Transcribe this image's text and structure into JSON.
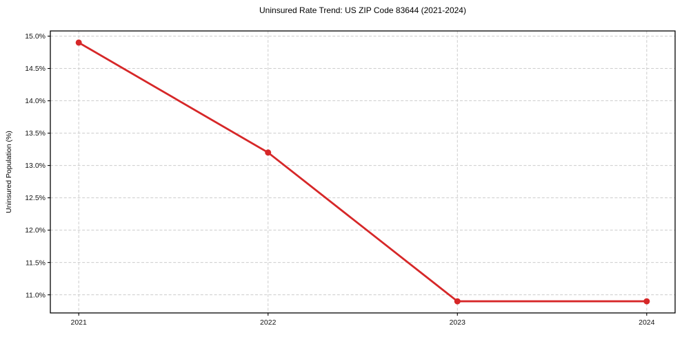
{
  "chart_data": {
    "type": "line",
    "title": "Uninsured Rate Trend: US ZIP Code 83644 (2021-2024)",
    "xlabel": "",
    "ylabel": "Uninsured Population (%)",
    "x": [
      2021,
      2022,
      2023,
      2024
    ],
    "x_tick_labels": [
      "2021",
      "2022",
      "2023",
      "2024"
    ],
    "series": [
      {
        "name": "Uninsured Population (%)",
        "values": [
          14.9,
          13.2,
          10.9,
          10.9
        ]
      }
    ],
    "yticks": [
      11.0,
      11.5,
      12.0,
      12.5,
      13.0,
      13.5,
      14.0,
      14.5,
      15.0
    ],
    "ytick_suffix": "%",
    "xlim": [
      2020.85,
      2024.15
    ],
    "ylim": [
      10.72,
      15.08
    ],
    "grid": true,
    "grid_style": "dashed",
    "legend_position": "none",
    "line_color": "#d62728",
    "marker": "circle",
    "marker_radius": 4.5,
    "background_color": "#ffffff"
  }
}
